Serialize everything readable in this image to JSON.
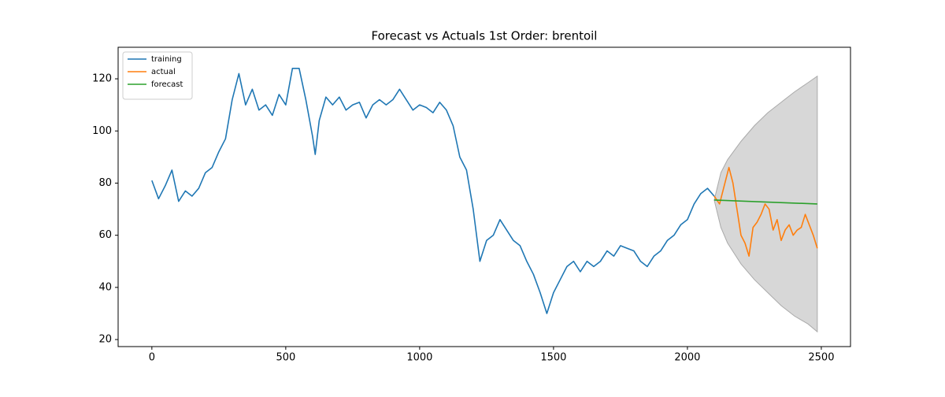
{
  "chart_data": {
    "type": "line",
    "title": "Forecast vs Actuals 1st Order: brentoil",
    "xlim": [
      -126,
      2609
    ],
    "ylim": [
      17.3,
      132.1
    ],
    "xticks": [
      0,
      500,
      1000,
      1500,
      2000,
      2500
    ],
    "yticks": [
      20,
      40,
      60,
      80,
      100,
      120
    ],
    "legend": "upper left",
    "grid": false,
    "series": [
      {
        "name": "training",
        "color": "#1f77b4",
        "x": [
          0,
          25,
          50,
          75,
          100,
          125,
          150,
          175,
          200,
          225,
          250,
          275,
          300,
          325,
          350,
          375,
          400,
          425,
          450,
          475,
          500,
          525,
          550,
          575,
          600,
          610,
          625,
          650,
          675,
          700,
          725,
          750,
          775,
          800,
          825,
          850,
          875,
          900,
          925,
          950,
          975,
          1000,
          1025,
          1050,
          1075,
          1100,
          1125,
          1150,
          1175,
          1200,
          1225,
          1250,
          1275,
          1300,
          1325,
          1350,
          1375,
          1400,
          1425,
          1450,
          1475,
          1500,
          1525,
          1550,
          1575,
          1600,
          1625,
          1650,
          1675,
          1700,
          1725,
          1750,
          1775,
          1800,
          1825,
          1850,
          1875,
          1900,
          1925,
          1950,
          1975,
          2000,
          2025,
          2050,
          2075,
          2100
        ],
        "values": [
          81,
          74,
          79,
          85,
          73,
          77,
          75,
          78,
          84,
          86,
          92,
          97,
          112,
          122,
          110,
          116,
          108,
          110,
          106,
          114,
          110,
          124,
          124,
          112,
          98,
          91,
          104,
          113,
          110,
          113,
          108,
          110,
          111,
          105,
          110,
          112,
          110,
          112,
          116,
          112,
          108,
          110,
          109,
          107,
          111,
          108,
          102,
          90,
          85,
          70,
          50,
          58,
          60,
          66,
          62,
          58,
          56,
          50,
          45,
          38,
          30,
          38,
          43,
          48,
          50,
          46,
          50,
          48,
          50,
          54,
          52,
          56,
          55,
          54,
          50,
          48,
          52,
          54,
          58,
          60,
          64,
          66,
          72,
          76,
          78,
          75
        ]
      },
      {
        "name": "actual",
        "color": "#ff7f0e",
        "x": [
          2100,
          2120,
          2140,
          2155,
          2170,
          2185,
          2200,
          2215,
          2230,
          2245,
          2260,
          2275,
          2290,
          2305,
          2320,
          2335,
          2350,
          2365,
          2380,
          2395,
          2410,
          2425,
          2440,
          2455,
          2470,
          2485
        ],
        "values": [
          75,
          72,
          80,
          86,
          80,
          70,
          60,
          57,
          52,
          63,
          65,
          68,
          72,
          70,
          62,
          66,
          58,
          62,
          64,
          60,
          62,
          63,
          68,
          64,
          60,
          55
        ]
      },
      {
        "name": "forecast",
        "color": "#2ca02c",
        "x": [
          2100,
          2485
        ],
        "values": [
          73.5,
          72
        ]
      }
    ],
    "band": {
      "color": "#d3d3d3",
      "x": [
        2100,
        2125,
        2150,
        2200,
        2250,
        2300,
        2350,
        2400,
        2450,
        2485
      ],
      "upper": [
        73.5,
        84,
        89,
        96,
        102,
        107,
        111,
        115,
        118.5,
        121
      ],
      "lower": [
        73.5,
        63,
        57,
        49,
        43,
        38,
        33,
        29,
        26,
        23
      ]
    }
  }
}
